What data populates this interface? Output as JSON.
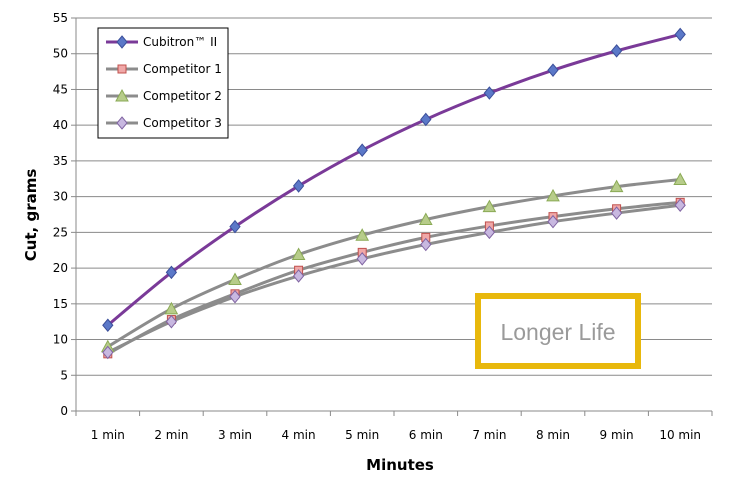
{
  "chart_data": {
    "type": "line",
    "categories": [
      "1 min",
      "2 min",
      "3 min",
      "4 min",
      "5 min",
      "6 min",
      "7 min",
      "8 min",
      "9 min",
      "10 min"
    ],
    "xlabel": "Minutes",
    "ylabel": "Cut, grams",
    "ylim": [
      0,
      55
    ],
    "yticks": [
      0,
      5,
      10,
      15,
      20,
      25,
      30,
      35,
      40,
      45,
      50,
      55
    ],
    "grid": true,
    "legend_position": "top-left",
    "series": [
      {
        "name": "Cubitron™ II",
        "marker": "diamond",
        "line_color": "#7a3a98",
        "marker_color": "#5b78c8",
        "marker_stroke": "#3b4f9a",
        "values": [
          12,
          19.4,
          25.8,
          31.5,
          36.5,
          40.8,
          44.5,
          47.7,
          50.4,
          52.7
        ]
      },
      {
        "name": "Competitor 1",
        "marker": "square",
        "line_color": "#8c8c8c",
        "marker_color": "#f0a8a8",
        "marker_stroke": "#c0504d",
        "values": [
          8,
          12.8,
          16.4,
          19.7,
          22.2,
          24.3,
          25.9,
          27.2,
          28.3,
          29.2
        ]
      },
      {
        "name": "Competitor 2",
        "marker": "triangle",
        "line_color": "#8c8c8c",
        "marker_color": "#b7cc8a",
        "marker_stroke": "#8aaa55",
        "values": [
          9,
          14.3,
          18.4,
          21.9,
          24.6,
          26.8,
          28.6,
          30.1,
          31.4,
          32.4
        ]
      },
      {
        "name": "Competitor 3",
        "marker": "diamond",
        "line_color": "#8c8c8c",
        "marker_color": "#c8b8e0",
        "marker_stroke": "#8064a2",
        "values": [
          8.2,
          12.5,
          16,
          18.9,
          21.3,
          23.3,
          25,
          26.5,
          27.7,
          28.8
        ]
      }
    ],
    "annotation": {
      "text": "Longer Life",
      "border_color": "#e8b80c"
    }
  }
}
